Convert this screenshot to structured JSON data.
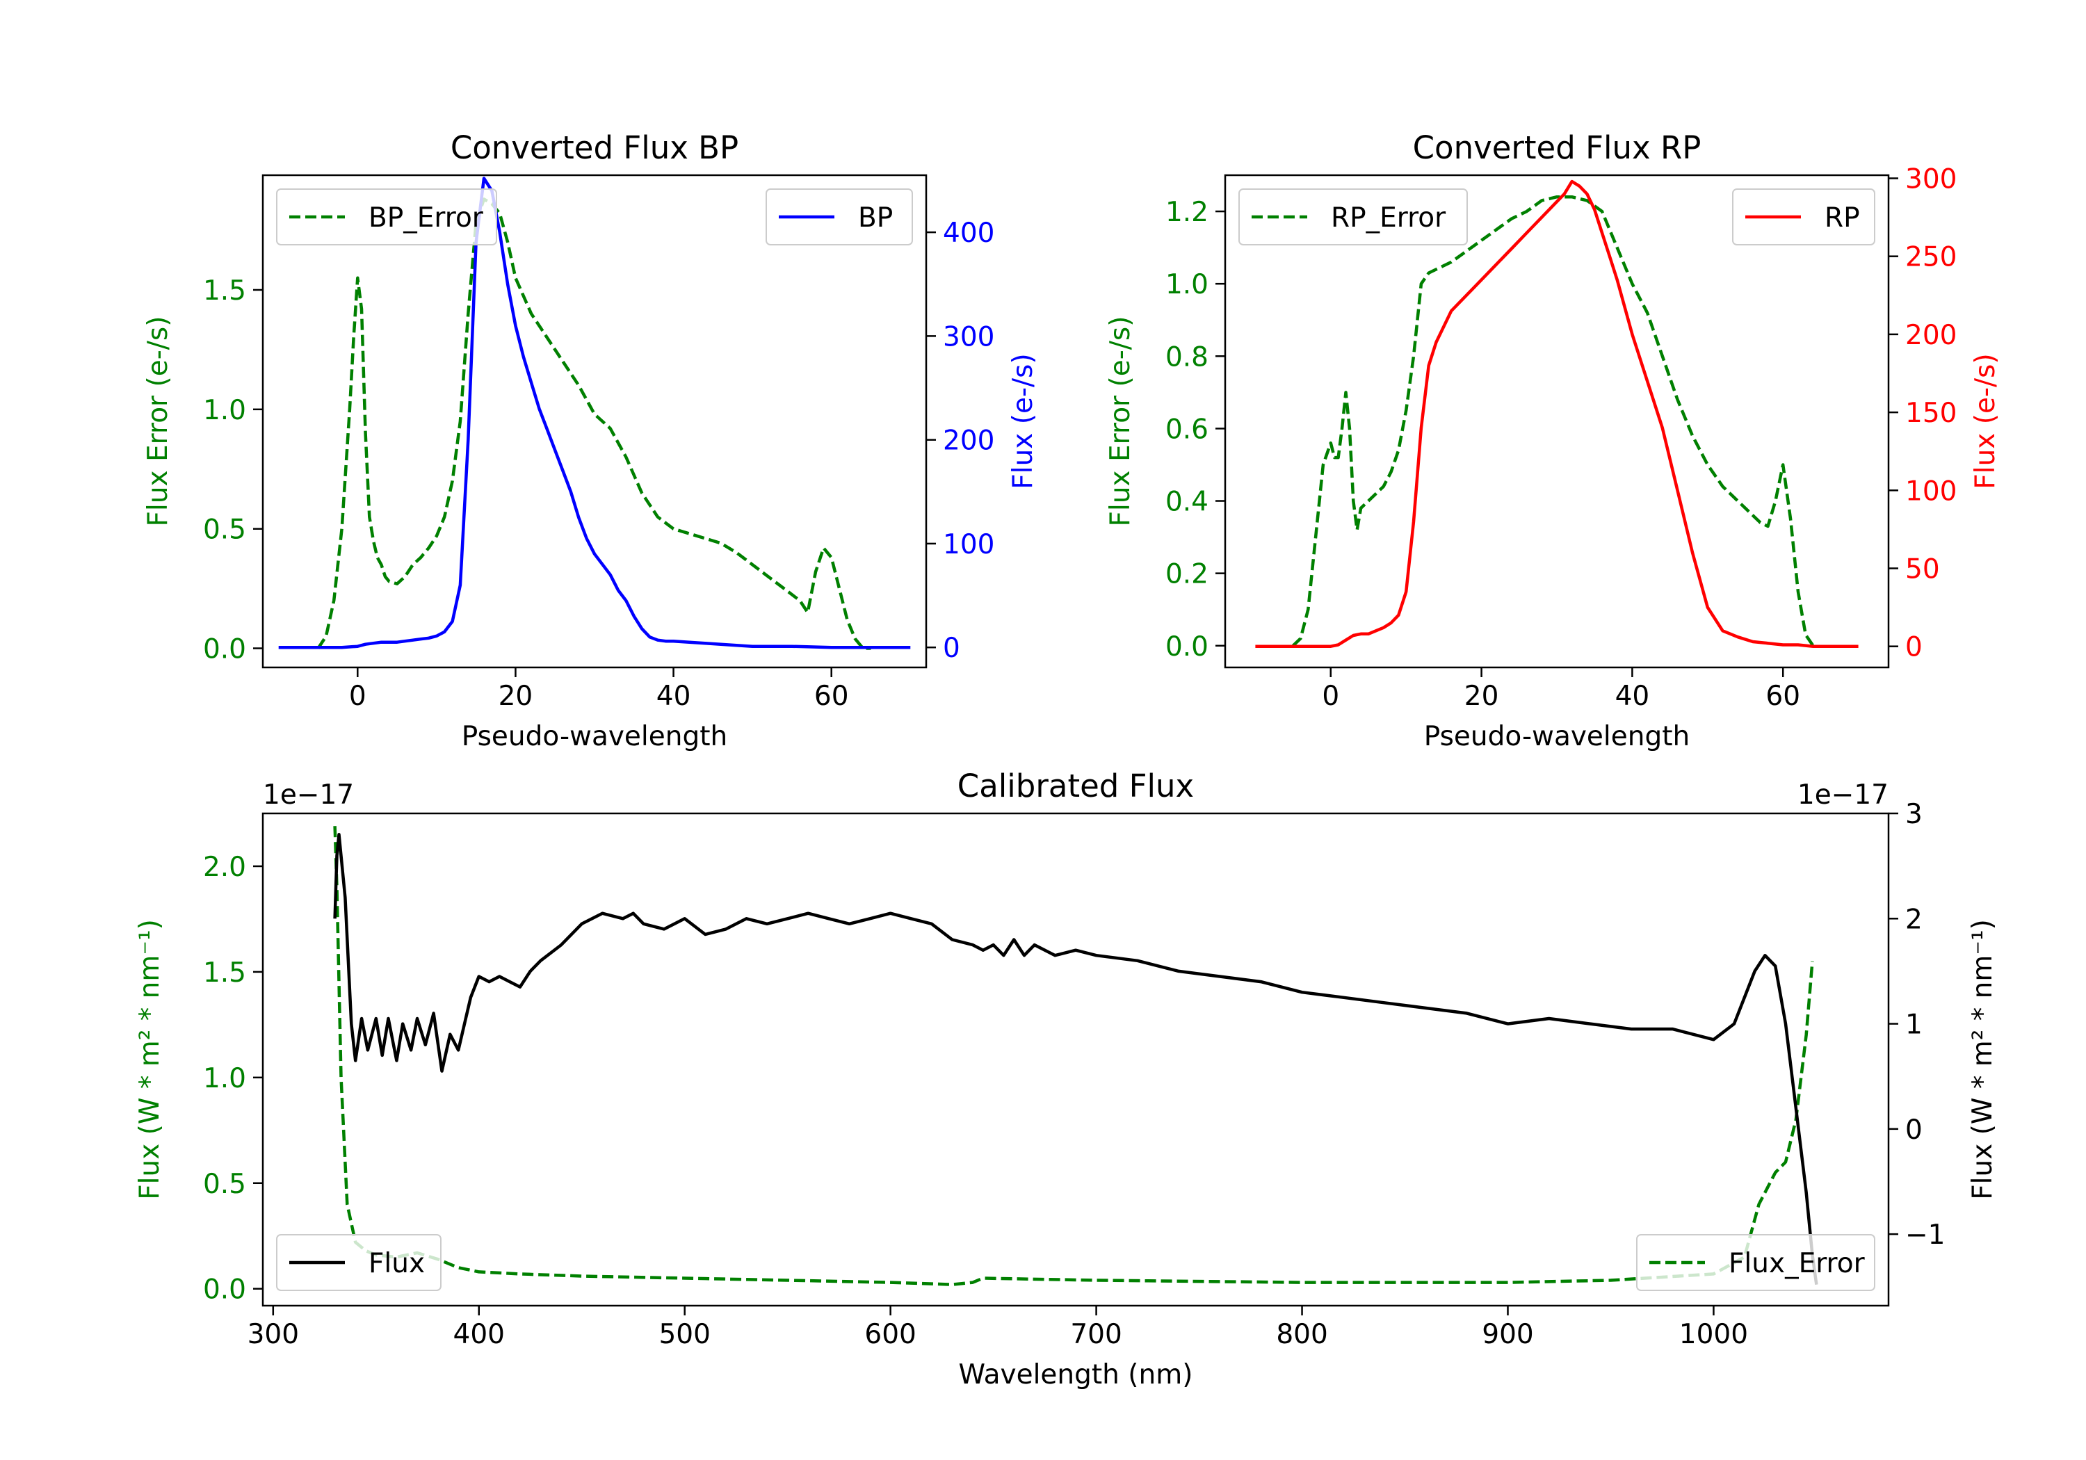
{
  "colors": {
    "green": "#008000",
    "blue": "#0000ff",
    "red": "#ff0000",
    "black": "#000000"
  },
  "chart_data": [
    {
      "type": "line",
      "title": "Converted Flux BP",
      "xlabel": "Pseudo-wavelength",
      "ylabel": "Flux Error (e-/s)",
      "ylabel2": "Flux (e-/s)",
      "xlim": [
        -12,
        72
      ],
      "ylim": [
        -0.08,
        1.98
      ],
      "y2lim": [
        -19.3,
        455
      ],
      "xticks": [
        "0",
        "20",
        "40",
        "60"
      ],
      "yticks": [
        "0.0",
        "0.5",
        "1.0",
        "1.5"
      ],
      "y2ticks": [
        "0",
        "100",
        "200",
        "300",
        "400"
      ],
      "legend_left": "BP_Error",
      "legend_right": "BP",
      "series": [
        {
          "name": "BP_Error",
          "axis": "left",
          "style": "dashed",
          "color": "#008000",
          "x": [
            -5,
            -4,
            -3,
            -2,
            -1,
            -0.5,
            0,
            0.5,
            1,
            1.5,
            2,
            2.5,
            3,
            3.5,
            4,
            5,
            6,
            7,
            8,
            9,
            10,
            11,
            12,
            13,
            14,
            15,
            16,
            17,
            18,
            19,
            20,
            22,
            24,
            26,
            28,
            30,
            32,
            34,
            36,
            38,
            40,
            42,
            44,
            46,
            48,
            50,
            52,
            54,
            56,
            57,
            58,
            59,
            60,
            61,
            62,
            63,
            64,
            65
          ],
          "y": [
            0,
            0.05,
            0.2,
            0.5,
            1.0,
            1.3,
            1.55,
            1.42,
            0.9,
            0.55,
            0.45,
            0.38,
            0.35,
            0.3,
            0.28,
            0.27,
            0.3,
            0.35,
            0.38,
            0.42,
            0.47,
            0.55,
            0.7,
            0.95,
            1.4,
            1.78,
            1.88,
            1.86,
            1.82,
            1.7,
            1.55,
            1.4,
            1.3,
            1.2,
            1.1,
            0.98,
            0.92,
            0.8,
            0.65,
            0.55,
            0.5,
            0.48,
            0.46,
            0.44,
            0.4,
            0.35,
            0.3,
            0.25,
            0.2,
            0.15,
            0.32,
            0.42,
            0.38,
            0.25,
            0.12,
            0.04,
            0,
            0
          ]
        },
        {
          "name": "BP",
          "axis": "right",
          "style": "solid",
          "color": "#0000ff",
          "x": [
            -10,
            -5,
            -2,
            0,
            1,
            2,
            3,
            4,
            5,
            6,
            7,
            8,
            9,
            10,
            11,
            12,
            13,
            14,
            15,
            16,
            17,
            18,
            19,
            20,
            21,
            22,
            23,
            24,
            25,
            26,
            27,
            28,
            29,
            30,
            31,
            32,
            33,
            34,
            35,
            36,
            37,
            38,
            39,
            40,
            42,
            44,
            46,
            48,
            50,
            55,
            60,
            65,
            70
          ],
          "y": [
            0,
            0,
            0,
            1,
            3,
            4,
            5,
            5,
            5,
            6,
            7,
            8,
            9,
            11,
            15,
            25,
            60,
            200,
            390,
            452,
            440,
            400,
            350,
            310,
            280,
            255,
            230,
            210,
            190,
            170,
            150,
            125,
            105,
            90,
            80,
            70,
            55,
            45,
            30,
            18,
            10,
            7,
            6,
            6,
            5,
            4,
            3,
            2,
            1,
            1,
            0,
            0,
            0
          ]
        }
      ]
    },
    {
      "type": "line",
      "title": "Converted Flux RP",
      "xlabel": "Pseudo-wavelength",
      "ylabel": "Flux Error (e-/s)",
      "ylabel2": "Flux (e-/s)",
      "xlim": [
        -14,
        74
      ],
      "ylim": [
        -0.06,
        1.3
      ],
      "y2lim": [
        -13.5,
        302
      ],
      "xticks": [
        "0",
        "20",
        "40",
        "60"
      ],
      "yticks": [
        "0.0",
        "0.2",
        "0.4",
        "0.6",
        "0.8",
        "1.0",
        "1.2"
      ],
      "y2ticks": [
        "0",
        "50",
        "100",
        "150",
        "200",
        "250",
        "300"
      ],
      "legend_left": "RP_Error",
      "legend_right": "RP",
      "series": [
        {
          "name": "RP_Error",
          "axis": "left",
          "style": "dashed",
          "color": "#008000",
          "x": [
            -5,
            -4,
            -3,
            -2,
            -1,
            0,
            0.5,
            1,
            1.5,
            2,
            2.5,
            3,
            3.5,
            4,
            5,
            6,
            7,
            8,
            9,
            10,
            11,
            12,
            13,
            14,
            15,
            16,
            18,
            20,
            22,
            24,
            26,
            28,
            30,
            32,
            34,
            36,
            38,
            40,
            42,
            44,
            46,
            48,
            50,
            52,
            54,
            55,
            56,
            57,
            58,
            59,
            60,
            61,
            62,
            63,
            64
          ],
          "y": [
            0,
            0.02,
            0.1,
            0.3,
            0.5,
            0.56,
            0.52,
            0.52,
            0.6,
            0.7,
            0.6,
            0.4,
            0.32,
            0.38,
            0.4,
            0.42,
            0.44,
            0.48,
            0.54,
            0.65,
            0.8,
            1.0,
            1.03,
            1.04,
            1.05,
            1.06,
            1.09,
            1.12,
            1.15,
            1.18,
            1.2,
            1.23,
            1.24,
            1.24,
            1.23,
            1.2,
            1.1,
            1.0,
            0.92,
            0.8,
            0.68,
            0.58,
            0.5,
            0.44,
            0.4,
            0.38,
            0.36,
            0.34,
            0.33,
            0.4,
            0.5,
            0.35,
            0.15,
            0.03,
            0
          ]
        },
        {
          "name": "RP",
          "axis": "right",
          "style": "solid",
          "color": "#ff0000",
          "x": [
            -10,
            -5,
            -2,
            0,
            1,
            2,
            3,
            4,
            5,
            6,
            7,
            8,
            9,
            10,
            11,
            12,
            13,
            14,
            16,
            18,
            20,
            22,
            24,
            26,
            28,
            30,
            31,
            32,
            33,
            34,
            35,
            36,
            37,
            38,
            40,
            42,
            44,
            46,
            48,
            50,
            52,
            54,
            56,
            58,
            60,
            62,
            64,
            66,
            70
          ],
          "y": [
            0,
            0,
            0,
            0,
            1,
            4,
            7,
            8,
            8,
            10,
            12,
            15,
            20,
            35,
            80,
            140,
            180,
            195,
            215,
            225,
            235,
            245,
            255,
            265,
            275,
            285,
            290,
            298,
            295,
            290,
            280,
            265,
            250,
            235,
            200,
            170,
            140,
            100,
            60,
            25,
            10,
            6,
            3,
            2,
            1,
            1,
            0,
            0,
            0
          ]
        }
      ]
    },
    {
      "type": "line",
      "title": "Calibrated Flux",
      "xlabel": "Wavelength (nm)",
      "ylabel": "Flux (W * m² * nm⁻¹)",
      "ylabel2": "Flux (W * m² * nm⁻¹)",
      "offset_left": "1e−17",
      "offset_right": "1e−17",
      "xlim": [
        295,
        1085
      ],
      "ylim": [
        -0.08,
        2.25
      ],
      "y2lim": [
        -1.68,
        3.0
      ],
      "xticks": [
        "300",
        "400",
        "500",
        "600",
        "700",
        "800",
        "900",
        "1000"
      ],
      "yticks": [
        "0.0",
        "0.5",
        "1.0",
        "1.5",
        "2.0"
      ],
      "y2ticks": [
        "−1",
        "0",
        "1",
        "2",
        "3"
      ],
      "legend_left": "Flux",
      "legend_right": "Flux_Error",
      "series": [
        {
          "name": "Flux_Error",
          "axis": "left",
          "style": "dashed",
          "color": "#008000",
          "x": [
            330,
            331,
            333,
            336,
            340,
            345,
            350,
            360,
            370,
            380,
            390,
            400,
            420,
            450,
            500,
            550,
            600,
            630,
            640,
            645,
            700,
            800,
            900,
            950,
            1000,
            1015,
            1022,
            1030,
            1035,
            1040,
            1045,
            1048
          ],
          "y": [
            2.19,
            1.9,
            1.0,
            0.4,
            0.22,
            0.18,
            0.16,
            0.15,
            0.17,
            0.14,
            0.1,
            0.08,
            0.07,
            0.06,
            0.05,
            0.04,
            0.03,
            0.02,
            0.03,
            0.05,
            0.04,
            0.03,
            0.03,
            0.04,
            0.07,
            0.15,
            0.4,
            0.55,
            0.6,
            0.8,
            1.2,
            1.55
          ]
        },
        {
          "name": "Flux",
          "axis": "right",
          "style": "solid",
          "color": "#000000",
          "x": [
            330,
            331,
            332,
            335,
            338,
            340,
            343,
            346,
            350,
            353,
            356,
            360,
            363,
            367,
            370,
            374,
            378,
            382,
            386,
            390,
            393,
            396,
            400,
            405,
            410,
            415,
            420,
            425,
            430,
            440,
            450,
            460,
            470,
            475,
            480,
            490,
            500,
            510,
            520,
            530,
            540,
            550,
            560,
            570,
            580,
            590,
            600,
            610,
            620,
            630,
            640,
            645,
            650,
            655,
            660,
            665,
            670,
            680,
            690,
            700,
            720,
            740,
            760,
            780,
            800,
            820,
            840,
            860,
            880,
            900,
            920,
            940,
            960,
            980,
            1000,
            1010,
            1020,
            1025,
            1030,
            1035,
            1040,
            1045,
            1048,
            1050
          ],
          "y": [
            2.0,
            2.6,
            2.8,
            2.2,
            1.0,
            0.65,
            1.05,
            0.75,
            1.05,
            0.7,
            1.05,
            0.65,
            1.0,
            0.75,
            1.05,
            0.8,
            1.1,
            0.55,
            0.9,
            0.75,
            1.0,
            1.25,
            1.45,
            1.4,
            1.45,
            1.4,
            1.35,
            1.5,
            1.6,
            1.75,
            1.95,
            2.05,
            2.0,
            2.05,
            1.95,
            1.9,
            2.0,
            1.85,
            1.9,
            2.0,
            1.95,
            2.0,
            2.05,
            2.0,
            1.95,
            2.0,
            2.05,
            2.0,
            1.95,
            1.8,
            1.75,
            1.7,
            1.75,
            1.65,
            1.8,
            1.65,
            1.75,
            1.65,
            1.7,
            1.65,
            1.6,
            1.5,
            1.45,
            1.4,
            1.3,
            1.25,
            1.2,
            1.15,
            1.1,
            1.0,
            1.05,
            1.0,
            0.95,
            0.95,
            0.85,
            1.0,
            1.5,
            1.65,
            1.55,
            1.0,
            0.2,
            -0.6,
            -1.2,
            -1.48
          ]
        }
      ]
    }
  ]
}
